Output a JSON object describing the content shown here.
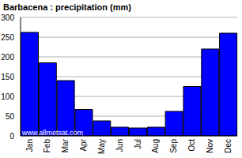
{
  "chart_data": {
    "type": "bar",
    "title": "Barbacena : precipitation (mm)",
    "annotation": "www.allmetsat.com",
    "categories": [
      "Jan",
      "Feb",
      "Mar",
      "Apr",
      "May",
      "Jun",
      "Jul",
      "Aug",
      "Sep",
      "Oct",
      "Nov",
      "Dec"
    ],
    "values": [
      262,
      185,
      140,
      67,
      38,
      22,
      20,
      22,
      62,
      125,
      220,
      260
    ],
    "color": "#0000ff",
    "ylim": [
      0,
      300
    ],
    "yticks": [
      0,
      50,
      100,
      150,
      200,
      250,
      300
    ],
    "grid": true
  }
}
